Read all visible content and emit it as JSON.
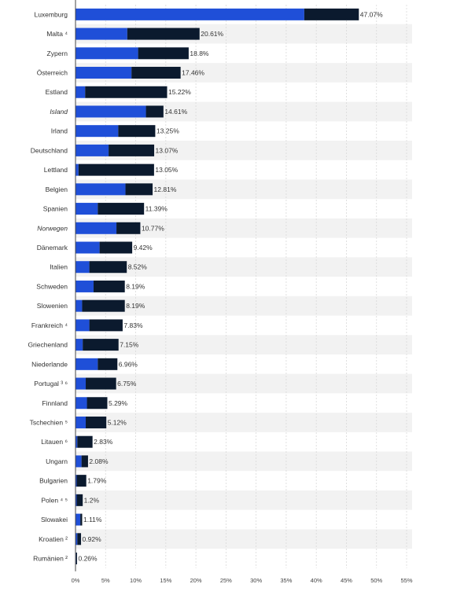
{
  "chart_data": {
    "type": "bar",
    "orientation": "horizontal",
    "stacked": true,
    "categories": [
      "Luxemburg",
      "Malta ⁴",
      "Zypern",
      "Österreich",
      "Estland",
      "Island",
      "Irland",
      "Deutschland",
      "Lettland",
      "Belgien",
      "Spanien",
      "Norwegen",
      "Dänemark",
      "Italien",
      "Schweden",
      "Slowenien",
      "Frankreich ⁴",
      "Griechenland",
      "Niederlande",
      "Portugal ³ ⁶",
      "Finnland",
      "Tschechien ⁵",
      "Litauen ⁶",
      "Ungarn",
      "Bulgarien",
      "Polen ⁴ ⁵",
      "Slowakei",
      "Kroatien ²",
      "Rumänien ²"
    ],
    "italic_categories": [
      "Island",
      "Norwegen"
    ],
    "series": [
      {
        "values": [
          38.0,
          8.6,
          10.4,
          9.3,
          1.6,
          11.7,
          7.1,
          5.5,
          0.5,
          8.3,
          3.7,
          6.8,
          4.0,
          2.3,
          3.0,
          1.1,
          2.3,
          1.2,
          3.7,
          1.7,
          1.9,
          1.7,
          0.3,
          1.0,
          0.2,
          0.2,
          0.8,
          0.3,
          0.1
        ],
        "color": "#1f4fd8"
      },
      {
        "values": [
          9.07,
          12.01,
          8.4,
          8.16,
          13.62,
          2.91,
          6.15,
          7.57,
          12.55,
          4.51,
          7.69,
          3.97,
          5.42,
          6.22,
          5.19,
          7.09,
          5.53,
          5.95,
          3.26,
          5.05,
          3.39,
          3.42,
          2.53,
          1.08,
          1.59,
          1.0,
          0.31,
          0.62,
          0.16
        ],
        "color": "#0b1a2e"
      }
    ],
    "totals": [
      "47.07%",
      "20.61%",
      "18.8%",
      "17.46%",
      "15.22%",
      "14.61%",
      "13.25%",
      "13.07%",
      "13.05%",
      "12.81%",
      "11.39%",
      "10.77%",
      "9.42%",
      "8.52%",
      "8.19%",
      "8.19%",
      "7.83%",
      "7.15%",
      "6.96%",
      "6.75%",
      "5.29%",
      "5.12%",
      "2.83%",
      "2.08%",
      "1.79%",
      "1.2%",
      "1.11%",
      "0.92%",
      "0.26%"
    ],
    "total_values": [
      47.07,
      20.61,
      18.8,
      17.46,
      15.22,
      14.61,
      13.25,
      13.07,
      13.05,
      12.81,
      11.39,
      10.77,
      9.42,
      8.52,
      8.19,
      8.19,
      7.83,
      7.15,
      6.96,
      6.75,
      5.29,
      5.12,
      2.83,
      2.08,
      1.79,
      1.2,
      1.11,
      0.92,
      0.26
    ],
    "xlim": [
      0,
      55
    ],
    "xticks": [
      0,
      5,
      10,
      15,
      20,
      25,
      30,
      35,
      40,
      45,
      50,
      55
    ],
    "xtick_labels": [
      "0%",
      "5%",
      "10%",
      "15%",
      "20%",
      "25%",
      "30%",
      "35%",
      "40%",
      "45%",
      "50%",
      "55%"
    ],
    "grid": "vertical-dashed",
    "stripe_color": "#f2f2f2",
    "grid_color": "#d9d9d9"
  }
}
